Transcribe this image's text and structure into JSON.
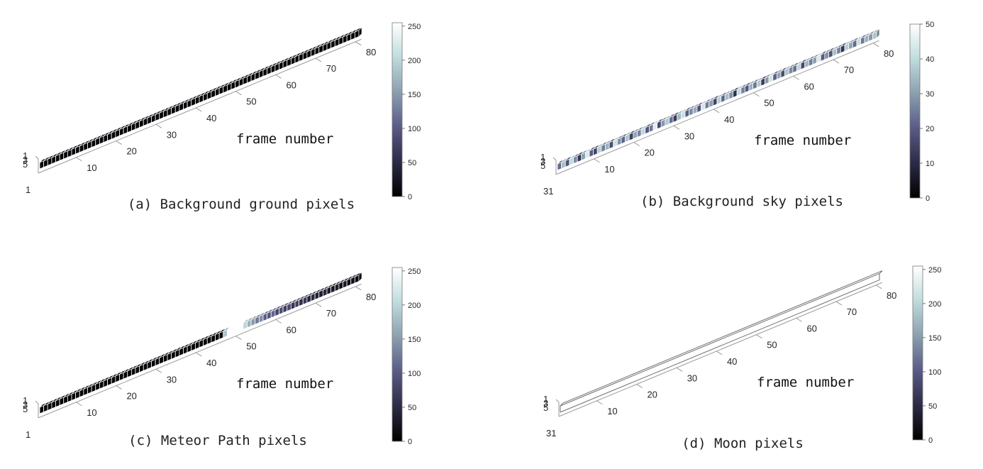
{
  "figure": {
    "cmap_colors": [
      "#000000",
      "#2c2b45",
      "#5a5a86",
      "#8b9fb0",
      "#bfdcdc",
      "#ffffff"
    ],
    "xlabel": "frame number",
    "x_ticks": [
      10,
      20,
      30,
      40,
      50,
      60,
      70,
      80
    ],
    "depth_ticks": [
      [
        "1",
        "3",
        "5"
      ],
      [
        "1",
        "3",
        "5"
      ],
      [
        "1",
        "3",
        "5"
      ],
      [
        "1",
        "3",
        "5"
      ]
    ],
    "origin_tick": [
      "1",
      "31",
      "1",
      "31"
    ]
  },
  "chart_data": [
    {
      "type": "heatmap",
      "panel": "a",
      "caption": "(a) Background ground pixels",
      "title": "",
      "xlabel": "frame number",
      "ylabel": "",
      "xlim": [
        1,
        80
      ],
      "clim": [
        0,
        255
      ],
      "colorbar_ticks": [
        0,
        50,
        100,
        150,
        200,
        250
      ],
      "empty_frames": [],
      "values": [
        5,
        8,
        4,
        10,
        6,
        3,
        9,
        7,
        5,
        11,
        4,
        6,
        8,
        3,
        9,
        5,
        7,
        10,
        4,
        6,
        8,
        5,
        3,
        9,
        7,
        4,
        6,
        10,
        5,
        8,
        3,
        7,
        9,
        4,
        6,
        5,
        11,
        8,
        3,
        7,
        4,
        9,
        6,
        5,
        10,
        8,
        4,
        7,
        3,
        6,
        9,
        5,
        8,
        4,
        10,
        7,
        3,
        6,
        5,
        9,
        8,
        4,
        7,
        10,
        3,
        6,
        5,
        8,
        9,
        4,
        7,
        3,
        6,
        10,
        5,
        8,
        4,
        9,
        7,
        6
      ]
    },
    {
      "type": "heatmap",
      "panel": "b",
      "caption": "(b) Background sky pixels",
      "title": "",
      "xlabel": "frame number",
      "ylabel": "",
      "xlim": [
        1,
        80
      ],
      "clim": [
        0,
        50
      ],
      "colorbar_ticks": [
        0,
        10,
        20,
        30,
        40,
        50
      ],
      "empty_frames": [],
      "values": [
        22,
        35,
        18,
        40,
        27,
        12,
        30,
        44,
        20,
        15,
        38,
        25,
        33,
        17,
        42,
        28,
        21,
        36,
        14,
        31,
        26,
        39,
        19,
        24,
        45,
        16,
        29,
        37,
        23,
        13,
        34,
        41,
        20,
        27,
        32,
        18,
        43,
        25,
        30,
        15,
        38,
        22,
        35,
        28,
        11,
        40,
        26,
        19,
        33,
        24,
        37,
        14,
        29,
        42,
        21,
        31,
        17,
        36,
        27,
        23,
        39,
        16,
        34,
        25,
        30,
        44,
        20,
        28,
        18,
        35,
        26,
        12,
        38,
        31,
        22,
        41,
        24,
        33,
        29,
        36
      ]
    },
    {
      "type": "heatmap",
      "panel": "c",
      "caption": "(c) Meteor Path pixels",
      "title": "",
      "xlabel": "frame number",
      "ylabel": "",
      "xlim": [
        1,
        80
      ],
      "clim": [
        0,
        255
      ],
      "colorbar_ticks": [
        0,
        50,
        100,
        150,
        200,
        250
      ],
      "empty_frames": [
        48,
        49,
        50,
        51
      ],
      "values": [
        5,
        8,
        4,
        10,
        6,
        3,
        9,
        7,
        5,
        11,
        4,
        6,
        8,
        3,
        9,
        5,
        7,
        10,
        4,
        6,
        8,
        5,
        3,
        9,
        7,
        4,
        6,
        10,
        5,
        8,
        3,
        7,
        9,
        4,
        6,
        5,
        11,
        8,
        3,
        7,
        4,
        9,
        6,
        5,
        10,
        8,
        185,
        255,
        255,
        255,
        255,
        200,
        170,
        150,
        125,
        140,
        105,
        95,
        110,
        80,
        90,
        70,
        85,
        60,
        75,
        55,
        65,
        45,
        50,
        40,
        35,
        45,
        30,
        25,
        35,
        20,
        30,
        15,
        20,
        10
      ]
    },
    {
      "type": "heatmap",
      "panel": "d",
      "caption": "(d) Moon pixels",
      "title": "",
      "xlabel": "frame number",
      "ylabel": "",
      "xlim": [
        1,
        80
      ],
      "clim": [
        0,
        255
      ],
      "colorbar_ticks": [
        0,
        50,
        100,
        150,
        200,
        250
      ],
      "empty_frames": [],
      "values": [
        255,
        255,
        255,
        255,
        255,
        255,
        255,
        255,
        255,
        255,
        255,
        255,
        255,
        255,
        255,
        255,
        255,
        255,
        255,
        255,
        255,
        255,
        255,
        255,
        255,
        255,
        255,
        255,
        255,
        255,
        255,
        255,
        255,
        255,
        255,
        255,
        255,
        255,
        255,
        255,
        255,
        255,
        255,
        255,
        255,
        255,
        255,
        255,
        255,
        255,
        255,
        255,
        255,
        255,
        255,
        255,
        255,
        255,
        255,
        255,
        255,
        255,
        255,
        255,
        255,
        255,
        255,
        255,
        255,
        255,
        255,
        255,
        255,
        255,
        255,
        255,
        255,
        255,
        255,
        255
      ]
    }
  ]
}
